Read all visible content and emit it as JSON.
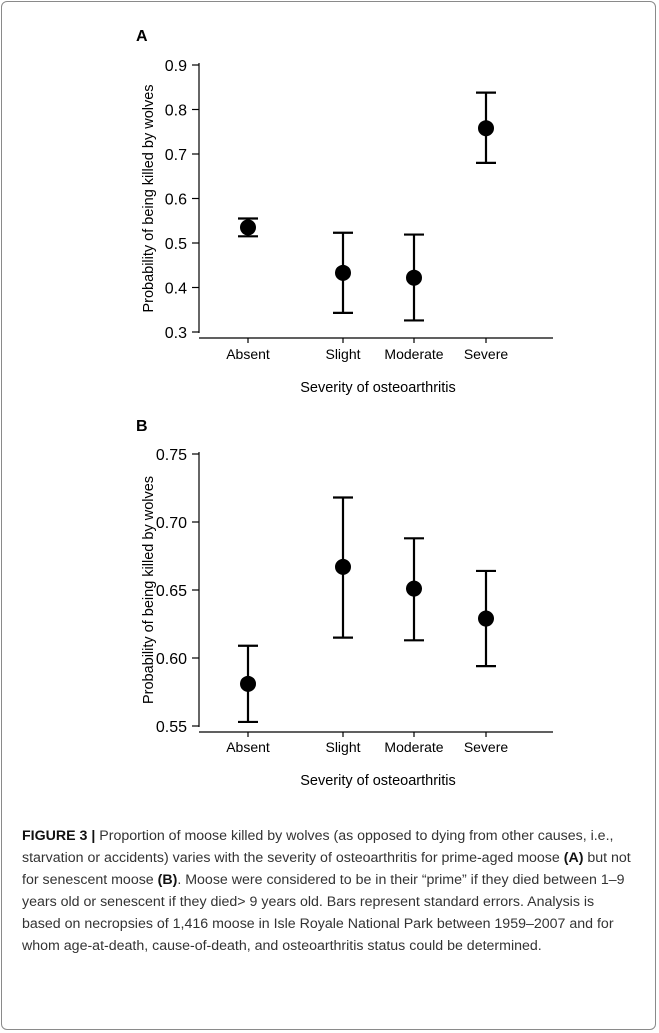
{
  "chart_data": [
    {
      "type": "scatter",
      "panel_label": "A",
      "categories": [
        "Absent",
        "Slight",
        "Moderate",
        "Severe"
      ],
      "values": [
        0.535,
        0.433,
        0.422,
        0.758
      ],
      "error_low": [
        0.515,
        0.343,
        0.326,
        0.68
      ],
      "error_high": [
        0.555,
        0.523,
        0.519,
        0.838
      ],
      "xlabel": "Severity of osteoarthritis",
      "ylabel": "Probability of being killed by wolves",
      "ylim": [
        0.3,
        0.9
      ],
      "yticks": [
        "0.3",
        "0.4",
        "0.5",
        "0.6",
        "0.7",
        "0.8",
        "0.9"
      ],
      "grid": false
    },
    {
      "type": "scatter",
      "panel_label": "B",
      "categories": [
        "Absent",
        "Slight",
        "Moderate",
        "Severe"
      ],
      "values": [
        0.581,
        0.667,
        0.651,
        0.629
      ],
      "error_low": [
        0.553,
        0.615,
        0.613,
        0.594
      ],
      "error_high": [
        0.609,
        0.718,
        0.688,
        0.664
      ],
      "xlabel": "Severity of osteoarthritis",
      "ylabel": "Probability of being killed by wolves",
      "ylim": [
        0.55,
        0.75
      ],
      "yticks": [
        "0.55",
        "0.60",
        "0.65",
        "0.70",
        "0.75"
      ],
      "grid": false
    }
  ],
  "caption": {
    "label": "FIGURE 3 |",
    "text_1": " Proportion of moose killed by wolves (as opposed to dying from other causes, i.e., starvation or accidents) varies with the severity of osteoarthritis for prime-aged moose ",
    "ref_a": "(A)",
    "text_2": " but not for senescent moose ",
    "ref_b": "(B)",
    "text_3": ". Moose were considered to be in their “prime” if they died between 1–9 years old or senescent if they died> 9 years old. Bars represent standard errors. Analysis is based on necropsies of 1,416 moose in Isle Royale National Park between 1959–2007 and for whom age-at-death, cause-of-death, and osteoarthritis status could be determined."
  }
}
